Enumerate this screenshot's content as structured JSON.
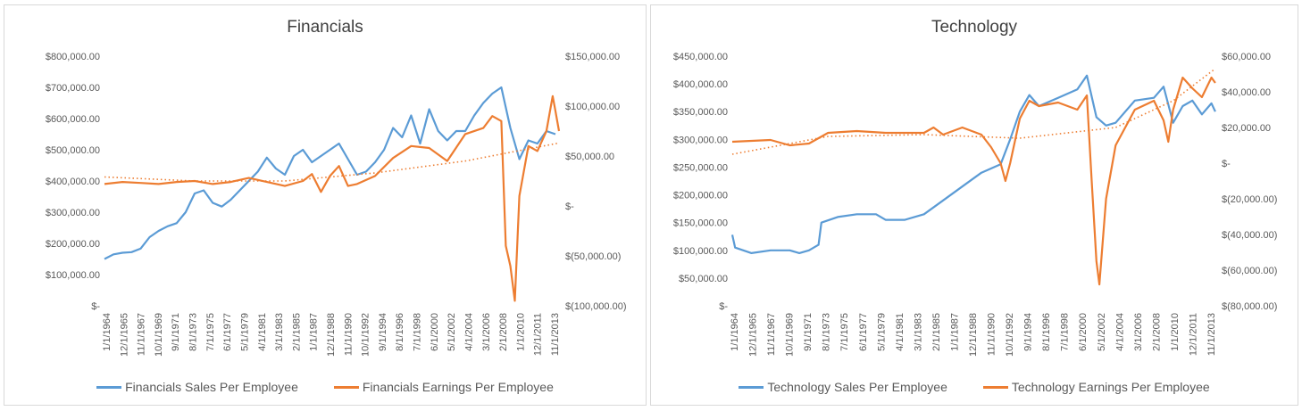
{
  "chart_data": [
    {
      "type": "line",
      "title": "Financials",
      "x_ticks": [
        "1/1/1964",
        "12/1/1965",
        "11/1/1967",
        "10/1/1969",
        "9/1/1971",
        "8/1/1973",
        "7/1/1975",
        "6/1/1977",
        "5/1/1979",
        "4/1/1981",
        "3/1/1983",
        "2/1/1985",
        "1/1/1987",
        "12/1/1988",
        "11/1/1990",
        "10/1/1992",
        "9/1/1994",
        "8/1/1996",
        "7/1/1998",
        "6/1/2000",
        "5/1/2002",
        "4/1/2004",
        "3/1/2006",
        "2/1/2008",
        "1/1/2010",
        "12/1/2011",
        "11/1/2013"
      ],
      "y_left_ticks": [
        "$-",
        "$100,000.00",
        "$200,000.00",
        "$300,000.00",
        "$400,000.00",
        "$500,000.00",
        "$600,000.00",
        "$700,000.00",
        "$800,000.00"
      ],
      "y_left_range": [
        0,
        800000
      ],
      "y_right_ticks": [
        "$(100,000.00)",
        "$(50,000.00)",
        "$-",
        "$50,000.00",
        "$100,000.00",
        "$150,000.00"
      ],
      "y_right_range": [
        -100000,
        150000
      ],
      "series": [
        {
          "name": "Financials Sales Per Employee",
          "axis": "left",
          "color": "#5b9bd5",
          "points": [
            [
              1964,
              150000
            ],
            [
              1965,
              165000
            ],
            [
              1966,
              170000
            ],
            [
              1967,
              172000
            ],
            [
              1968,
              183000
            ],
            [
              1969,
              220000
            ],
            [
              1970,
              240000
            ],
            [
              1971,
              255000
            ],
            [
              1972,
              265000
            ],
            [
              1973,
              300000
            ],
            [
              1974,
              360000
            ],
            [
              1975,
              370000
            ],
            [
              1976,
              330000
            ],
            [
              1977,
              318000
            ],
            [
              1978,
              340000
            ],
            [
              1979,
              370000
            ],
            [
              1980,
              400000
            ],
            [
              1981,
              430000
            ],
            [
              1982,
              475000
            ],
            [
              1983,
              440000
            ],
            [
              1984,
              420000
            ],
            [
              1985,
              480000
            ],
            [
              1986,
              500000
            ],
            [
              1987,
              460000
            ],
            [
              1988,
              480000
            ],
            [
              1989,
              500000
            ],
            [
              1990,
              520000
            ],
            [
              1991,
              470000
            ],
            [
              1992,
              420000
            ],
            [
              1993,
              430000
            ],
            [
              1994,
              460000
            ],
            [
              1995,
              500000
            ],
            [
              1996,
              570000
            ],
            [
              1997,
              540000
            ],
            [
              1998,
              610000
            ],
            [
              1999,
              520000
            ],
            [
              2000,
              630000
            ],
            [
              2001,
              560000
            ],
            [
              2002,
              530000
            ],
            [
              2003,
              560000
            ],
            [
              2004,
              560000
            ],
            [
              2005,
              610000
            ],
            [
              2006,
              650000
            ],
            [
              2007,
              680000
            ],
            [
              2008,
              700000
            ],
            [
              2009,
              570000
            ],
            [
              2010,
              470000
            ],
            [
              2011,
              530000
            ],
            [
              2012,
              520000
            ],
            [
              2013,
              560000
            ],
            [
              2014,
              550000
            ]
          ]
        },
        {
          "name": "Financials Earnings Per Employee",
          "axis": "right",
          "color": "#ed7d31",
          "points": [
            [
              1964,
              22000
            ],
            [
              1966,
              24000
            ],
            [
              1968,
              23000
            ],
            [
              1970,
              22000
            ],
            [
              1972,
              24000
            ],
            [
              1974,
              25000
            ],
            [
              1976,
              22000
            ],
            [
              1978,
              24000
            ],
            [
              1980,
              28000
            ],
            [
              1982,
              24000
            ],
            [
              1984,
              20000
            ],
            [
              1986,
              25000
            ],
            [
              1987,
              32000
            ],
            [
              1988,
              14000
            ],
            [
              1989,
              30000
            ],
            [
              1990,
              40000
            ],
            [
              1991,
              20000
            ],
            [
              1992,
              22000
            ],
            [
              1994,
              30000
            ],
            [
              1996,
              48000
            ],
            [
              1998,
              60000
            ],
            [
              2000,
              58000
            ],
            [
              2002,
              45000
            ],
            [
              2004,
              72000
            ],
            [
              2006,
              78000
            ],
            [
              2007,
              90000
            ],
            [
              2008,
              85000
            ],
            [
              2008.5,
              -40000
            ],
            [
              2009,
              -60000
            ],
            [
              2009.5,
              -95000
            ],
            [
              2010,
              10000
            ],
            [
              2011,
              60000
            ],
            [
              2012,
              55000
            ],
            [
              2013,
              75000
            ],
            [
              2013.7,
              110000
            ],
            [
              2014,
              95000
            ],
            [
              2014.4,
              75000
            ]
          ]
        },
        {
          "name": "",
          "axis": "right",
          "color": "#ed7d31",
          "style": "dotted",
          "points": [
            [
              1964,
              29000
            ],
            [
              1974,
              25000
            ],
            [
              1984,
              25000
            ],
            [
              1994,
              33000
            ],
            [
              2004,
              45000
            ],
            [
              2014.4,
              63000
            ]
          ]
        }
      ],
      "legend": [
        "Financials Sales Per Employee",
        "Financials Earnings Per Employee"
      ],
      "legend_position": "bottom",
      "grid": false
    },
    {
      "type": "line",
      "title": "Technology",
      "x_ticks": [
        "1/1/1964",
        "12/1/1965",
        "11/1/1967",
        "10/1/1969",
        "9/1/1971",
        "8/1/1973",
        "7/1/1975",
        "6/1/1977",
        "5/1/1979",
        "4/1/1981",
        "3/1/1983",
        "2/1/1985",
        "1/1/1987",
        "12/1/1988",
        "11/1/1990",
        "10/1/1992",
        "9/1/1994",
        "8/1/1996",
        "7/1/1998",
        "6/1/2000",
        "5/1/2002",
        "4/1/2004",
        "3/1/2006",
        "2/1/2008",
        "1/1/2010",
        "12/1/2011",
        "11/1/2013"
      ],
      "y_left_ticks": [
        "$-",
        "$50,000.00",
        "$100,000.00",
        "$150,000.00",
        "$200,000.00",
        "$250,000.00",
        "$300,000.00",
        "$350,000.00",
        "$400,000.00",
        "$450,000.00"
      ],
      "y_left_range": [
        0,
        450000
      ],
      "y_right_ticks": [
        "$(80,000.00)",
        "$(60,000.00)",
        "$(40,000.00)",
        "$(20,000.00)",
        "$-",
        "$20,000.00",
        "$40,000.00",
        "$60,000.00"
      ],
      "y_right_range": [
        -80000,
        60000
      ],
      "series": [
        {
          "name": "Technology Sales Per Employee",
          "axis": "left",
          "color": "#5b9bd5",
          "points": [
            [
              1964,
              128000
            ],
            [
              1964.3,
              105000
            ],
            [
              1966,
              95000
            ],
            [
              1968,
              100000
            ],
            [
              1970,
              100000
            ],
            [
              1971,
              95000
            ],
            [
              1972,
              100000
            ],
            [
              1973,
              110000
            ],
            [
              1973.3,
              150000
            ],
            [
              1975,
              160000
            ],
            [
              1977,
              165000
            ],
            [
              1979,
              165000
            ],
            [
              1980,
              155000
            ],
            [
              1982,
              155000
            ],
            [
              1984,
              165000
            ],
            [
              1986,
              190000
            ],
            [
              1988,
              215000
            ],
            [
              1990,
              240000
            ],
            [
              1992,
              255000
            ],
            [
              1993,
              300000
            ],
            [
              1994,
              350000
            ],
            [
              1995,
              380000
            ],
            [
              1996,
              360000
            ],
            [
              1998,
              375000
            ],
            [
              2000,
              390000
            ],
            [
              2001,
              415000
            ],
            [
              2002,
              340000
            ],
            [
              2003,
              325000
            ],
            [
              2004,
              330000
            ],
            [
              2006,
              370000
            ],
            [
              2008,
              375000
            ],
            [
              2009,
              395000
            ],
            [
              2010,
              330000
            ],
            [
              2011,
              360000
            ],
            [
              2012,
              370000
            ],
            [
              2013,
              345000
            ],
            [
              2014,
              365000
            ],
            [
              2014.4,
              350000
            ]
          ]
        },
        {
          "name": "Technology Earnings Per Employee",
          "axis": "right",
          "color": "#ed7d31",
          "points": [
            [
              1964,
              12000
            ],
            [
              1968,
              13000
            ],
            [
              1970,
              10000
            ],
            [
              1972,
              11000
            ],
            [
              1974,
              17000
            ],
            [
              1977,
              18000
            ],
            [
              1980,
              17000
            ],
            [
              1984,
              17000
            ],
            [
              1985,
              20000
            ],
            [
              1986,
              16000
            ],
            [
              1988,
              20000
            ],
            [
              1990,
              16000
            ],
            [
              1991,
              9000
            ],
            [
              1992,
              0
            ],
            [
              1992.5,
              -10000
            ],
            [
              1993,
              0
            ],
            [
              1994,
              25000
            ],
            [
              1995,
              35000
            ],
            [
              1996,
              32000
            ],
            [
              1998,
              34000
            ],
            [
              2000,
              30000
            ],
            [
              2001,
              38000
            ],
            [
              2001.5,
              -10000
            ],
            [
              2002,
              -55000
            ],
            [
              2002.3,
              -68000
            ],
            [
              2003,
              -20000
            ],
            [
              2004,
              10000
            ],
            [
              2006,
              30000
            ],
            [
              2008,
              35000
            ],
            [
              2009,
              24000
            ],
            [
              2009.5,
              12000
            ],
            [
              2010,
              30000
            ],
            [
              2011,
              48000
            ],
            [
              2012,
              42000
            ],
            [
              2013,
              37000
            ],
            [
              2014,
              48000
            ],
            [
              2014.4,
              45000
            ]
          ]
        },
        {
          "name": "",
          "axis": "right",
          "color": "#ed7d31",
          "style": "dotted",
          "points": [
            [
              1964,
              5000
            ],
            [
              1974,
              15000
            ],
            [
              1984,
              16000
            ],
            [
              1994,
              14000
            ],
            [
              2004,
              20000
            ],
            [
              2010,
              35000
            ],
            [
              2014.4,
              53000
            ]
          ]
        }
      ],
      "legend": [
        "Technology Sales Per Employee",
        "Technology Earnings Per Employee"
      ],
      "legend_position": "bottom",
      "grid": false
    }
  ]
}
